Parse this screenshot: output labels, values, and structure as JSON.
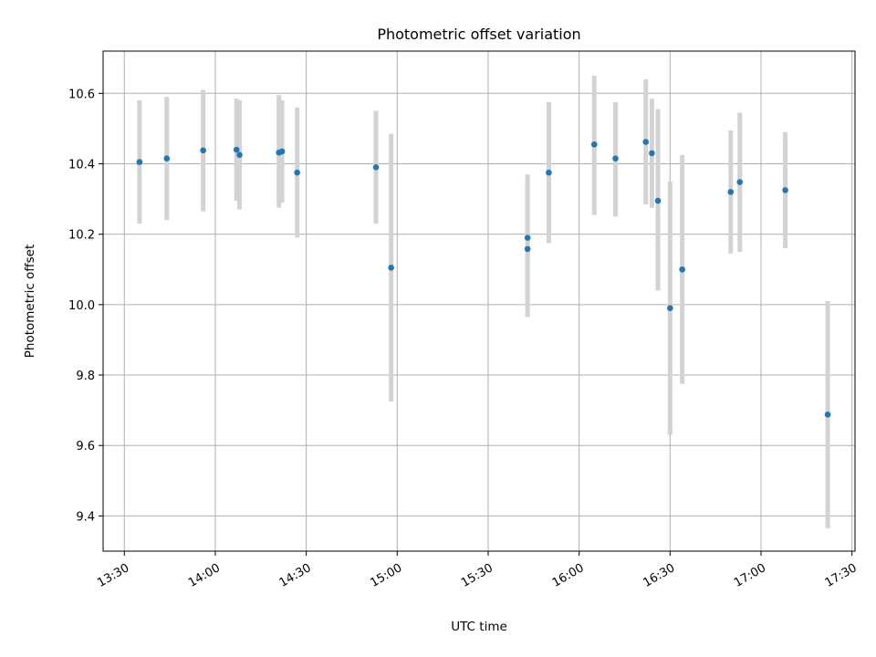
{
  "chart_data": {
    "type": "scatter",
    "title": "Photometric offset variation",
    "xlabel": "UTC time",
    "ylabel": "Photometric offset",
    "x_unit": "time (HH:MM UTC)",
    "xlim": [
      "13:23",
      "17:31"
    ],
    "ylim": [
      9.3,
      10.72
    ],
    "grid": true,
    "x_ticks": [
      "13:30",
      "14:00",
      "14:30",
      "15:00",
      "15:30",
      "16:00",
      "16:30",
      "17:00",
      "17:30"
    ],
    "y_ticks": [
      9.4,
      9.6,
      9.8,
      10.0,
      10.2,
      10.4,
      10.6
    ],
    "y_tick_labels": [
      "9.4",
      "9.6",
      "9.8",
      "10.0",
      "10.2",
      "10.4",
      "10.6"
    ],
    "marker_color": "#1f77b4",
    "errorbar_color": "#d3d3d3",
    "points": [
      {
        "x": "13:35",
        "y": 10.405,
        "y_low": 10.23,
        "y_high": 10.58
      },
      {
        "x": "13:44",
        "y": 10.415,
        "y_low": 10.24,
        "y_high": 10.59
      },
      {
        "x": "13:56",
        "y": 10.438,
        "y_low": 10.265,
        "y_high": 10.61
      },
      {
        "x": "14:07",
        "y": 10.44,
        "y_low": 10.295,
        "y_high": 10.585
      },
      {
        "x": "14:08",
        "y": 10.425,
        "y_low": 10.27,
        "y_high": 10.58
      },
      {
        "x": "14:21",
        "y": 10.432,
        "y_low": 10.275,
        "y_high": 10.595
      },
      {
        "x": "14:22",
        "y": 10.435,
        "y_low": 10.29,
        "y_high": 10.58
      },
      {
        "x": "14:27",
        "y": 10.375,
        "y_low": 10.19,
        "y_high": 10.56
      },
      {
        "x": "14:53",
        "y": 10.39,
        "y_low": 10.23,
        "y_high": 10.55
      },
      {
        "x": "14:58",
        "y": 10.105,
        "y_low": 9.725,
        "y_high": 10.485
      },
      {
        "x": "15:43",
        "y": 10.158,
        "y_low": 9.965,
        "y_high": 10.345
      },
      {
        "x": "15:43",
        "y": 10.19,
        "y_low": 10.01,
        "y_high": 10.37
      },
      {
        "x": "15:50",
        "y": 10.375,
        "y_low": 10.175,
        "y_high": 10.575
      },
      {
        "x": "16:05",
        "y": 10.455,
        "y_low": 10.255,
        "y_high": 10.65
      },
      {
        "x": "16:12",
        "y": 10.415,
        "y_low": 10.25,
        "y_high": 10.575
      },
      {
        "x": "16:22",
        "y": 10.462,
        "y_low": 10.285,
        "y_high": 10.64
      },
      {
        "x": "16:24",
        "y": 10.43,
        "y_low": 10.275,
        "y_high": 10.585
      },
      {
        "x": "16:26",
        "y": 10.295,
        "y_low": 10.04,
        "y_high": 10.555
      },
      {
        "x": "16:30",
        "y": 9.99,
        "y_low": 9.63,
        "y_high": 10.35
      },
      {
        "x": "16:34",
        "y": 10.1,
        "y_low": 9.775,
        "y_high": 10.425
      },
      {
        "x": "16:50",
        "y": 10.32,
        "y_low": 10.145,
        "y_high": 10.495
      },
      {
        "x": "16:53",
        "y": 10.348,
        "y_low": 10.15,
        "y_high": 10.545
      },
      {
        "x": "17:08",
        "y": 10.325,
        "y_low": 10.16,
        "y_high": 10.49
      },
      {
        "x": "17:22",
        "y": 9.688,
        "y_low": 9.365,
        "y_high": 10.01
      }
    ]
  }
}
